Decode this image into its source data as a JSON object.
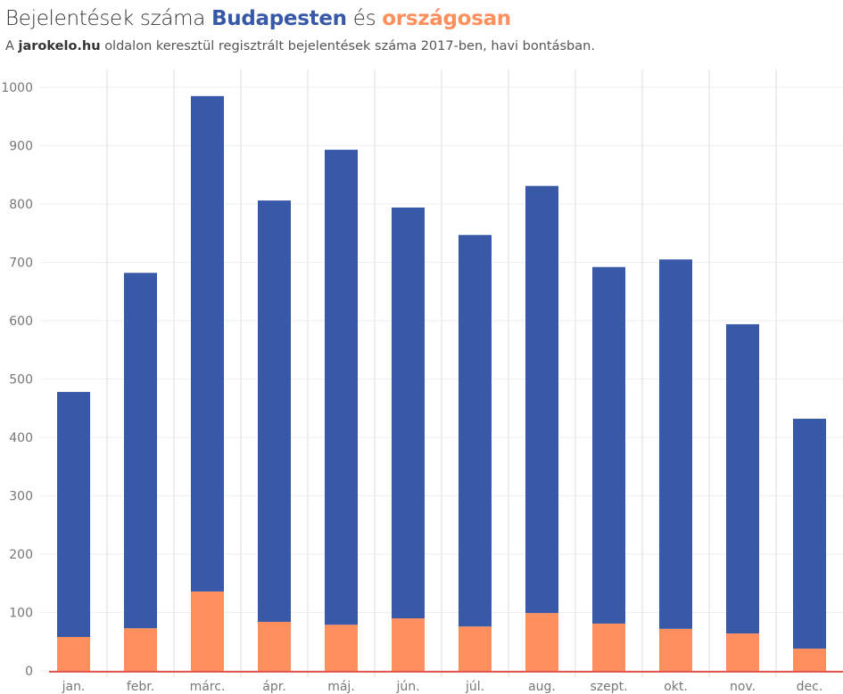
{
  "title": {
    "prefix": "Bejelentések száma",
    "budapest": "Budapesten",
    "middle": "és",
    "national": "országosan"
  },
  "subtitle": {
    "prefix": "A",
    "site": "jarokelo.hu",
    "rest": "oldalon keresztül regisztrált bejelentések száma 2017-ben, havi bontásban."
  },
  "colors": {
    "budapest": "#3759a8",
    "national": "#ff8f5c",
    "grid": "#eeeeee"
  },
  "chart_data": {
    "type": "bar",
    "stacked": true,
    "categories": [
      "jan.",
      "febr.",
      "márc.",
      "ápr.",
      "máj.",
      "jún.",
      "júl.",
      "aug.",
      "szept.",
      "okt.",
      "nov.",
      "dec."
    ],
    "series": [
      {
        "name": "országosan",
        "values": [
          58,
          73,
          136,
          84,
          79,
          90,
          76,
          99,
          81,
          72,
          64,
          38
        ]
      },
      {
        "name": "Budapesten",
        "values": [
          420,
          609,
          849,
          722,
          814,
          704,
          671,
          732,
          611,
          633,
          530,
          394
        ]
      }
    ],
    "ylim": [
      0,
      1000
    ],
    "yticks": [
      0,
      100,
      200,
      300,
      400,
      500,
      600,
      700,
      800,
      900,
      1000
    ],
    "grid": true,
    "xlabel": "",
    "ylabel": ""
  }
}
